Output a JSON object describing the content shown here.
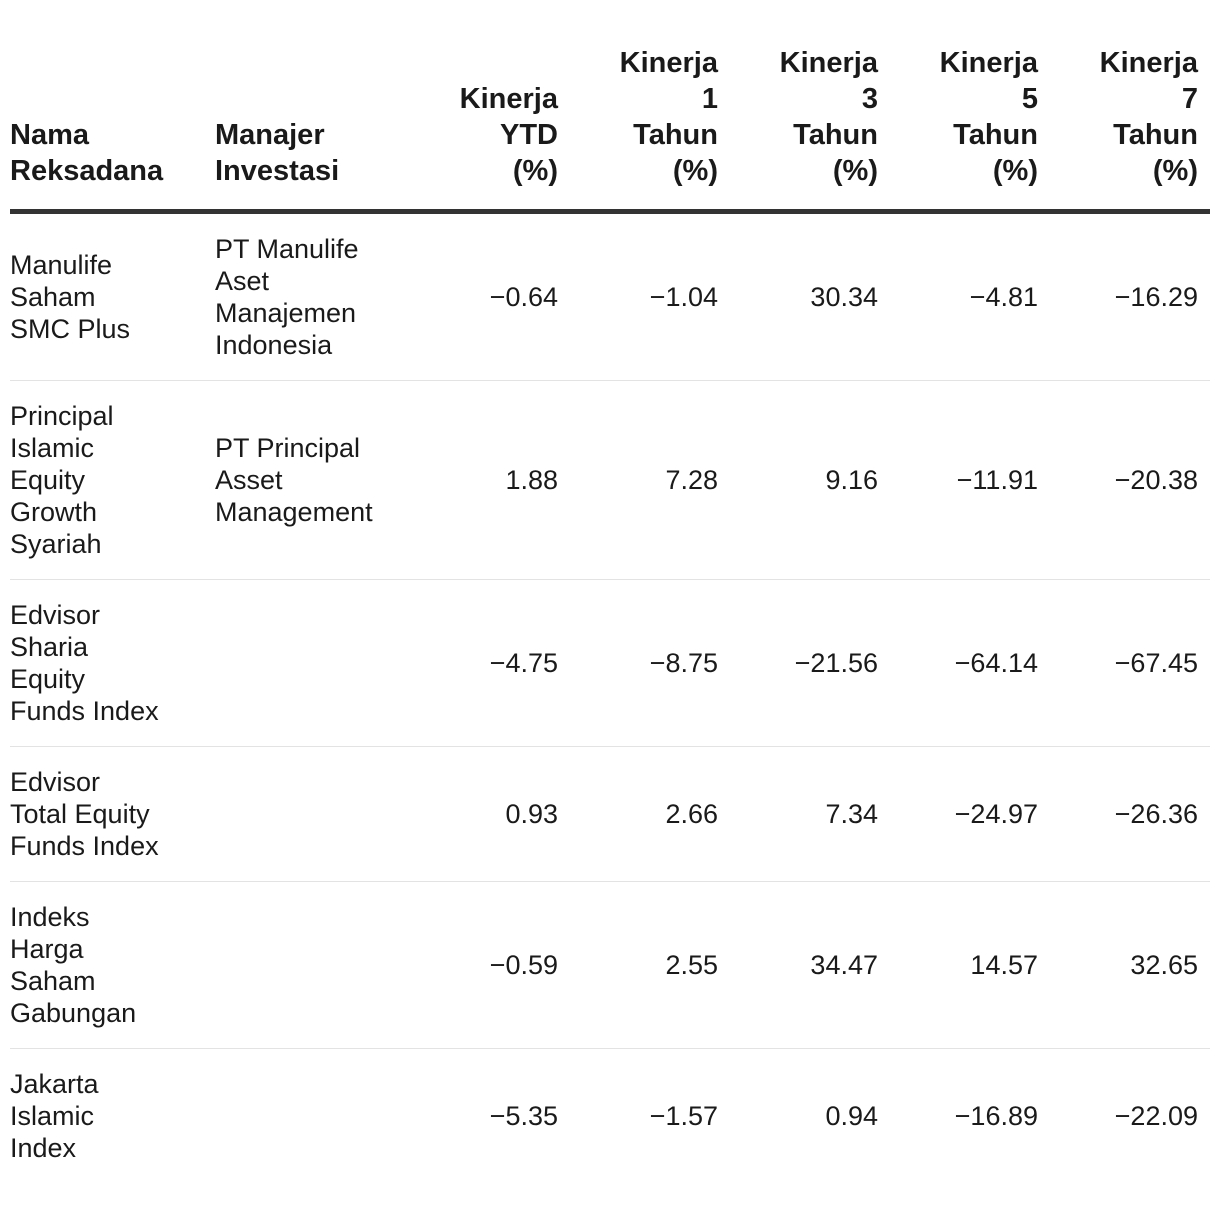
{
  "table": {
    "headers": {
      "name": [
        "Nama",
        "Reksadana"
      ],
      "manager": [
        "Manajer",
        "Investasi"
      ],
      "ytd": [
        "Kinerja",
        "YTD",
        "(%)"
      ],
      "y1": [
        "Kinerja",
        "1",
        "Tahun",
        "(%)"
      ],
      "y3": [
        "Kinerja",
        "3",
        "Tahun",
        "(%)"
      ],
      "y5": [
        "Kinerja",
        "5",
        "Tahun",
        "(%)"
      ],
      "y7": [
        "Kinerja",
        "7",
        "Tahun",
        "(%)"
      ]
    },
    "rows": [
      {
        "name": [
          "Manulife",
          "Saham",
          "SMC Plus"
        ],
        "manager": [
          "PT Manulife",
          "Aset",
          "Manajemen",
          "Indonesia"
        ],
        "ytd": "−0.64",
        "y1": "−1.04",
        "y3": "30.34",
        "y5": "−4.81",
        "y7": "−16.29"
      },
      {
        "name": [
          "Principal",
          "Islamic",
          "Equity",
          "Growth",
          "Syariah"
        ],
        "manager": [
          "PT Principal",
          "Asset",
          "Management"
        ],
        "ytd": "1.88",
        "y1": "7.28",
        "y3": "9.16",
        "y5": "−11.91",
        "y7": "−20.38"
      },
      {
        "name": [
          "Edvisor",
          "Sharia",
          "Equity",
          "Funds Index"
        ],
        "manager": [],
        "ytd": "−4.75",
        "y1": "−8.75",
        "y3": "−21.56",
        "y5": "−64.14",
        "y7": "−67.45"
      },
      {
        "name": [
          "Edvisor",
          "Total Equity",
          "Funds Index"
        ],
        "manager": [],
        "ytd": "0.93",
        "y1": "2.66",
        "y3": "7.34",
        "y5": "−24.97",
        "y7": "−26.36"
      },
      {
        "name": [
          "Indeks",
          "Harga",
          "Saham",
          "Gabungan"
        ],
        "manager": [],
        "ytd": "−0.59",
        "y1": "2.55",
        "y3": "34.47",
        "y5": "14.57",
        "y7": "32.65"
      },
      {
        "name": [
          "Jakarta",
          "Islamic",
          "Index"
        ],
        "manager": [],
        "ytd": "−5.35",
        "y1": "−1.57",
        "y3": "0.94",
        "y5": "−16.89",
        "y7": "−22.09"
      }
    ]
  }
}
